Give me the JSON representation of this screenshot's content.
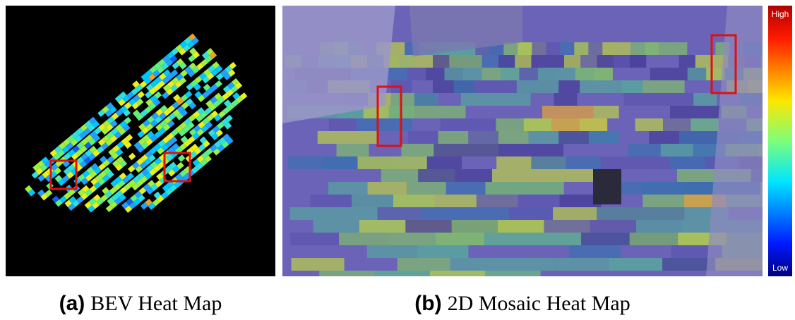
{
  "panels": [
    {
      "label": "(a)",
      "caption": "BEV Heat Map"
    },
    {
      "label": "(b)",
      "caption": "2D Mosaic Heat Map"
    }
  ],
  "colorbar": {
    "high": "High",
    "low": "Low"
  }
}
